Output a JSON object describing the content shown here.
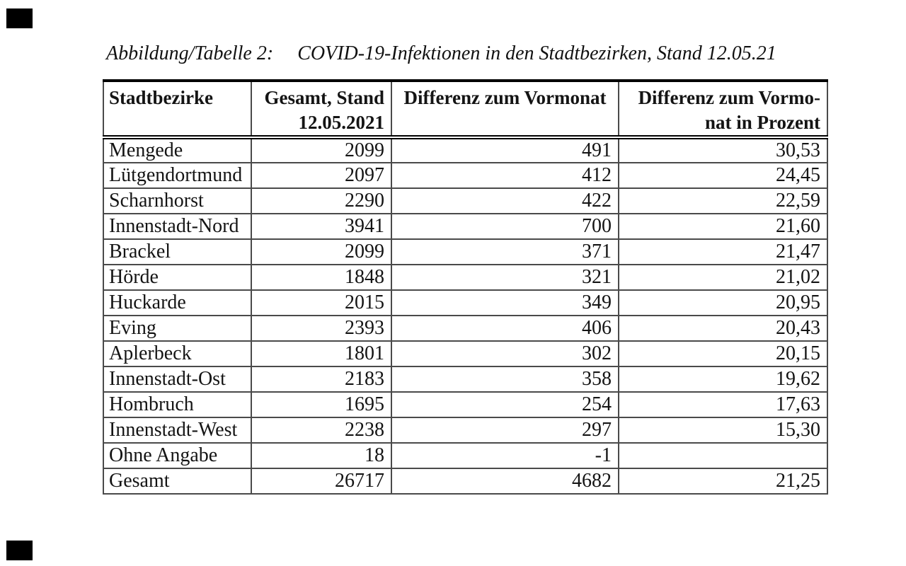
{
  "caption": {
    "label": "Abbildung/Tabelle 2:",
    "title": "COVID-19-Infektionen in den Stadtbezirken, Stand 12.05.21"
  },
  "table": {
    "columns": [
      {
        "label": "Stadtbezirke",
        "align": "left"
      },
      {
        "label": "Gesamt, Stand\n12.05.2021",
        "align": "right"
      },
      {
        "label": "Differenz zum Vormonat",
        "align": "center"
      },
      {
        "label": "Differenz zum Vormo-\nnat in Prozent",
        "align": "right"
      }
    ],
    "rows": [
      {
        "district": "Mengede",
        "total": "2099",
        "diff": "491",
        "diff_pct": "30,53"
      },
      {
        "district": "Lütgendortmund",
        "total": "2097",
        "diff": "412",
        "diff_pct": "24,45"
      },
      {
        "district": "Scharnhorst",
        "total": "2290",
        "diff": "422",
        "diff_pct": "22,59"
      },
      {
        "district": "Innenstadt-Nord",
        "total": "3941",
        "diff": "700",
        "diff_pct": "21,60"
      },
      {
        "district": "Brackel",
        "total": "2099",
        "diff": "371",
        "diff_pct": "21,47"
      },
      {
        "district": "Hörde",
        "total": "1848",
        "diff": "321",
        "diff_pct": "21,02"
      },
      {
        "district": "Huckarde",
        "total": "2015",
        "diff": "349",
        "diff_pct": "20,95"
      },
      {
        "district": "Eving",
        "total": "2393",
        "diff": "406",
        "diff_pct": "20,43"
      },
      {
        "district": "Aplerbeck",
        "total": "1801",
        "diff": "302",
        "diff_pct": "20,15"
      },
      {
        "district": "Innenstadt-Ost",
        "total": "2183",
        "diff": "358",
        "diff_pct": "19,62"
      },
      {
        "district": "Hombruch",
        "total": "1695",
        "diff": "254",
        "diff_pct": "17,63"
      },
      {
        "district": "Innenstadt-West",
        "total": "2238",
        "diff": "297",
        "diff_pct": "15,30"
      },
      {
        "district": "Ohne Angabe",
        "total": "18",
        "diff": "-1",
        "diff_pct": ""
      },
      {
        "district": "Gesamt",
        "total": "26717",
        "diff": "4682",
        "diff_pct": "21,25"
      }
    ]
  },
  "colors": {
    "background": "#ffffff",
    "text": "#141414",
    "outer_border": "#000000",
    "inner_border": "#4a4a4a",
    "scan_mark": "#000000"
  }
}
